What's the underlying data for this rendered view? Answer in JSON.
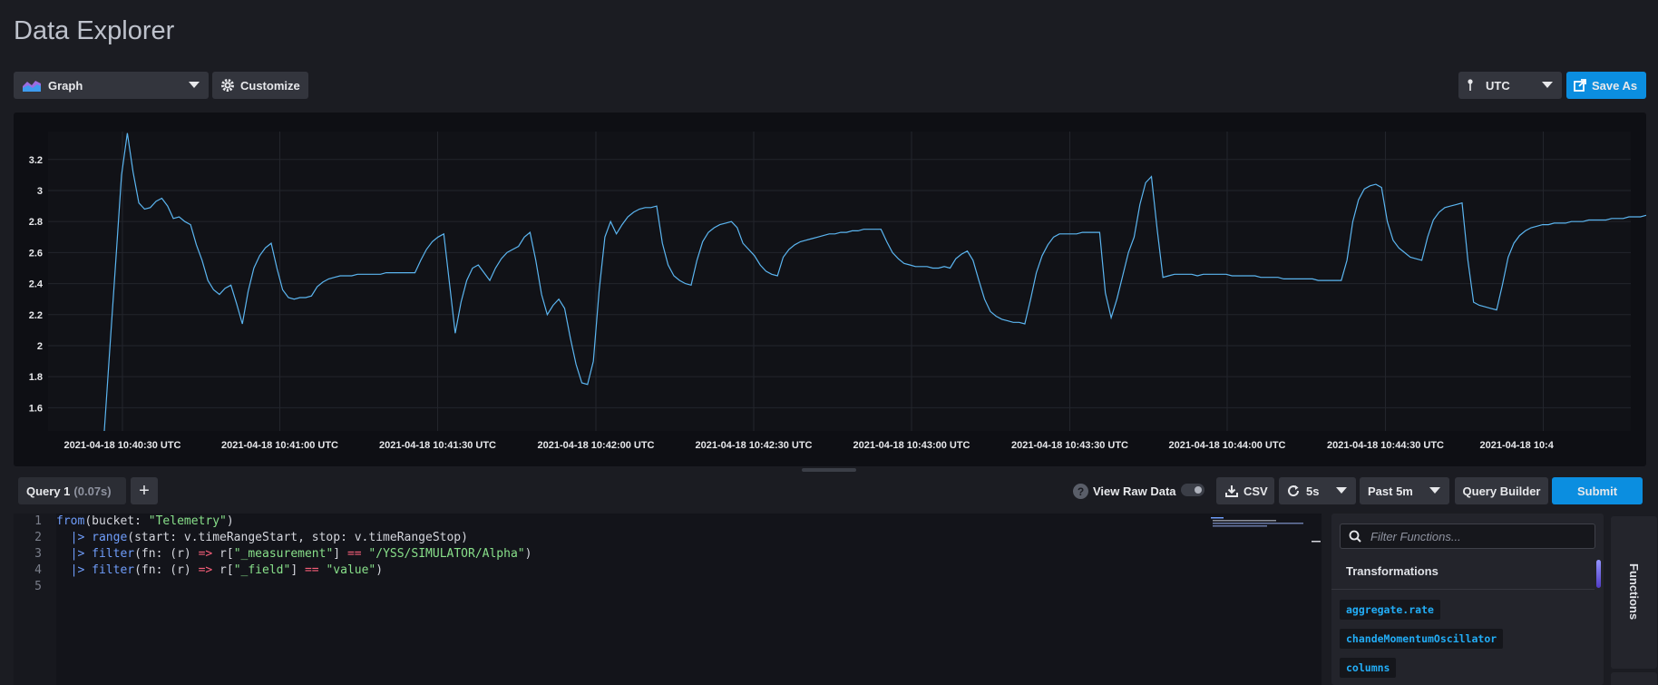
{
  "page_title": "Data Explorer",
  "toolbar": {
    "vis_type": "Graph",
    "customize_label": "Customize",
    "timezone": "UTC",
    "save_as_label": "Save As"
  },
  "chart_data": {
    "type": "line",
    "title": "",
    "xlabel": "",
    "ylabel": "",
    "ylim": [
      1.45,
      3.38
    ],
    "y_ticks": [
      "1.6",
      "1.8",
      "2",
      "2.2",
      "2.4",
      "2.6",
      "2.8",
      "3",
      "3.2"
    ],
    "x_ticks": [
      "2021-04-18 10:40:30 UTC",
      "2021-04-18 10:41:00 UTC",
      "2021-04-18 10:41:30 UTC",
      "2021-04-18 10:42:00 UTC",
      "2021-04-18 10:42:30 UTC",
      "2021-04-18 10:43:00 UTC",
      "2021-04-18 10:43:30 UTC",
      "2021-04-18 10:44:00 UTC",
      "2021-04-18 10:44:30 UTC",
      "2021-04-18 10:4"
    ],
    "x_start": "2021-04-18 10:40:15 UTC",
    "x_step_seconds": 2,
    "grid": true,
    "series": [
      {
        "color": "#5bb5f0",
        "values": [
          1.45,
          2.0,
          2.55,
          3.1,
          3.37,
          3.12,
          2.92,
          2.88,
          2.89,
          2.93,
          2.95,
          2.9,
          2.82,
          2.83,
          2.8,
          2.78,
          2.65,
          2.55,
          2.42,
          2.36,
          2.33,
          2.37,
          2.39,
          2.27,
          2.14,
          2.35,
          2.5,
          2.58,
          2.63,
          2.66,
          2.5,
          2.36,
          2.31,
          2.3,
          2.31,
          2.31,
          2.32,
          2.38,
          2.41,
          2.43,
          2.44,
          2.45,
          2.45,
          2.45,
          2.46,
          2.46,
          2.46,
          2.46,
          2.46,
          2.47,
          2.47,
          2.47,
          2.47,
          2.47,
          2.47,
          2.55,
          2.62,
          2.67,
          2.7,
          2.72,
          2.4,
          2.08,
          2.28,
          2.42,
          2.5,
          2.52,
          2.47,
          2.42,
          2.5,
          2.56,
          2.6,
          2.62,
          2.64,
          2.7,
          2.73,
          2.55,
          2.33,
          2.2,
          2.26,
          2.3,
          2.24,
          2.05,
          1.88,
          1.76,
          1.75,
          1.9,
          2.35,
          2.7,
          2.8,
          2.72,
          2.78,
          2.83,
          2.86,
          2.88,
          2.89,
          2.89,
          2.9,
          2.66,
          2.52,
          2.45,
          2.42,
          2.4,
          2.39,
          2.55,
          2.67,
          2.73,
          2.76,
          2.78,
          2.79,
          2.8,
          2.76,
          2.66,
          2.62,
          2.58,
          2.52,
          2.48,
          2.46,
          2.45,
          2.57,
          2.62,
          2.65,
          2.67,
          2.68,
          2.69,
          2.7,
          2.71,
          2.72,
          2.72,
          2.73,
          2.73,
          2.74,
          2.74,
          2.75,
          2.75,
          2.75,
          2.75,
          2.67,
          2.6,
          2.56,
          2.53,
          2.52,
          2.51,
          2.51,
          2.51,
          2.5,
          2.5,
          2.51,
          2.5,
          2.56,
          2.59,
          2.61,
          2.55,
          2.42,
          2.3,
          2.22,
          2.19,
          2.17,
          2.16,
          2.15,
          2.15,
          2.14,
          2.3,
          2.47,
          2.58,
          2.65,
          2.7,
          2.72,
          2.72,
          2.72,
          2.72,
          2.73,
          2.73,
          2.73,
          2.73,
          2.34,
          2.18,
          2.3,
          2.45,
          2.6,
          2.7,
          2.91,
          3.05,
          3.09,
          2.75,
          2.44,
          2.45,
          2.46,
          2.46,
          2.46,
          2.46,
          2.45,
          2.46,
          2.46,
          2.46,
          2.46,
          2.46,
          2.45,
          2.45,
          2.45,
          2.45,
          2.45,
          2.44,
          2.44,
          2.44,
          2.44,
          2.43,
          2.43,
          2.43,
          2.43,
          2.43,
          2.43,
          2.42,
          2.42,
          2.42,
          2.42,
          2.42,
          2.55,
          2.8,
          2.94,
          3.01,
          3.03,
          3.04,
          3.02,
          2.8,
          2.68,
          2.63,
          2.6,
          2.57,
          2.56,
          2.55,
          2.7,
          2.81,
          2.86,
          2.89,
          2.9,
          2.91,
          2.92,
          2.55,
          2.28,
          2.26,
          2.25,
          2.24,
          2.23,
          2.39,
          2.57,
          2.66,
          2.71,
          2.74,
          2.76,
          2.77,
          2.78,
          2.78,
          2.79,
          2.79,
          2.79,
          2.8,
          2.8,
          2.8,
          2.81,
          2.81,
          2.81,
          2.81,
          2.82,
          2.82,
          2.82,
          2.83,
          2.83,
          2.83,
          2.84
        ]
      }
    ]
  },
  "query_bar": {
    "tab_label": "Query 1",
    "tab_time": "(0.07s)",
    "add_label": "+",
    "view_raw_label": "View Raw Data",
    "csv_label": "CSV",
    "refresh_label": "5s",
    "time_range": "Past 5m",
    "query_builder_label": "Query Builder",
    "submit_label": "Submit"
  },
  "editor": {
    "line_numbers": [
      "1",
      "2",
      "3",
      "4",
      "5"
    ],
    "lines": [
      [
        {
          "t": "from",
          "c": "kw"
        },
        {
          "t": "(bucket: ",
          "c": ""
        },
        {
          "t": "\"Telemetry\"",
          "c": "str"
        },
        {
          "t": ")",
          "c": ""
        }
      ],
      [
        {
          "t": "  |> ",
          "c": "pipe"
        },
        {
          "t": "range",
          "c": "kw"
        },
        {
          "t": "(start: v.timeRangeStart, stop: v.timeRangeStop)",
          "c": ""
        }
      ],
      [
        {
          "t": "  |> ",
          "c": "pipe"
        },
        {
          "t": "filter",
          "c": "kw"
        },
        {
          "t": "(fn: (r) ",
          "c": ""
        },
        {
          "t": "=>",
          "c": "op"
        },
        {
          "t": " r[",
          "c": ""
        },
        {
          "t": "\"_measurement\"",
          "c": "str"
        },
        {
          "t": "] ",
          "c": ""
        },
        {
          "t": "==",
          "c": "op"
        },
        {
          "t": " ",
          "c": ""
        },
        {
          "t": "\"/YSS/SIMULATOR/Alpha\"",
          "c": "str"
        },
        {
          "t": ")",
          "c": ""
        }
      ],
      [
        {
          "t": "  |> ",
          "c": "pipe"
        },
        {
          "t": "filter",
          "c": "kw"
        },
        {
          "t": "(fn: (r) ",
          "c": ""
        },
        {
          "t": "=>",
          "c": "op"
        },
        {
          "t": " r[",
          "c": ""
        },
        {
          "t": "\"_field\"",
          "c": "str"
        },
        {
          "t": "] ",
          "c": ""
        },
        {
          "t": "==",
          "c": "op"
        },
        {
          "t": " ",
          "c": ""
        },
        {
          "t": "\"value\"",
          "c": "str"
        },
        {
          "t": ")",
          "c": ""
        }
      ],
      []
    ]
  },
  "functions": {
    "search_placeholder": "Filter Functions...",
    "category": "Transformations",
    "items": [
      "aggregate.rate",
      "chandeMomentumOscillator",
      "columns"
    ],
    "tab_label": "Functions"
  }
}
